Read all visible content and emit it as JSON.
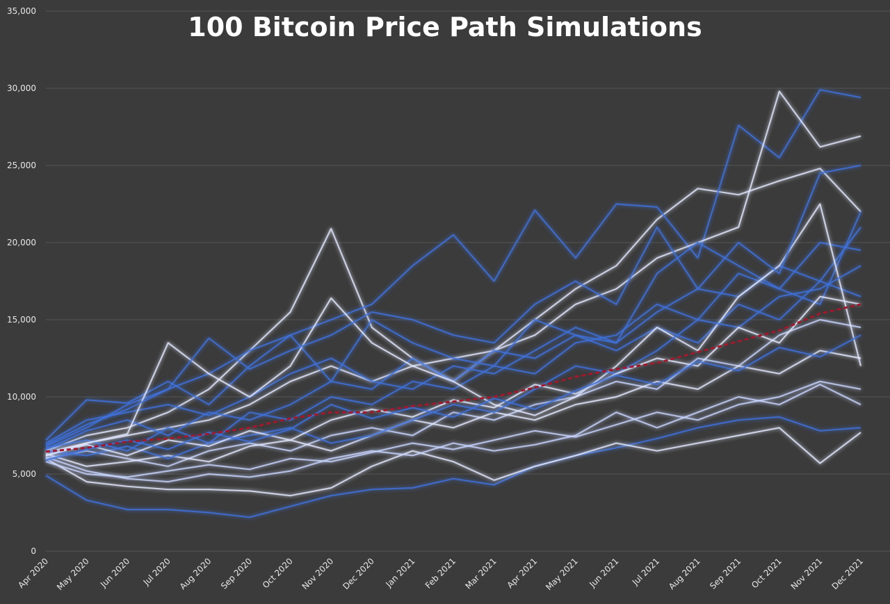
{
  "chart_data": {
    "type": "line",
    "title": "100 Bitcoin Price Path Simulations",
    "categories": [
      "Apr 2020",
      "May 2020",
      "Jun 2020",
      "Jul 2020",
      "Aug 2020",
      "Sep 2020",
      "Oct 2020",
      "Nov 2020",
      "Dec 2020",
      "Jan 2021",
      "Feb 2021",
      "Mar 2021",
      "Apr 2021",
      "May 2021",
      "Jun 2021",
      "Jul 2021",
      "Aug 2021",
      "Sep 2021",
      "Oct 2021",
      "Nov 2021",
      "Dec 2021"
    ],
    "ylim": [
      0,
      35000
    ],
    "yticks": [
      0,
      {
        "value": 5000,
        "label": "5,000"
      },
      {
        "value": 10000,
        "label": "10,000"
      },
      {
        "value": 15000,
        "label": "15,000"
      },
      {
        "value": 20000,
        "label": "20,000"
      },
      {
        "value": 25000,
        "label": "25,000"
      },
      {
        "value": 30000,
        "label": "30,000"
      },
      {
        "value": 35000,
        "label": "35,000"
      }
    ],
    "grid": true,
    "series": [
      {
        "color": "#e4e9ff",
        "values": [
          6500,
          7500,
          8000,
          9000,
          10500,
          13000,
          15500,
          20900,
          14500,
          12500,
          11000,
          13000,
          15000,
          17000,
          18500,
          21500,
          23500,
          23100,
          24000,
          24800,
          22000
        ]
      },
      {
        "color": "#3f72dc",
        "values": [
          6800,
          8000,
          9500,
          10500,
          11500,
          13000,
          14000,
          15000,
          16000,
          18500,
          20500,
          17500,
          22100,
          19000,
          22500,
          22300,
          19000,
          27600,
          25500,
          29900,
          29400
        ]
      },
      {
        "color": "#e4e9ff",
        "values": [
          6200,
          7000,
          7500,
          8000,
          8500,
          9500,
          11000,
          12000,
          11000,
          12000,
          12500,
          13000,
          14000,
          16000,
          17000,
          19000,
          20000,
          21000,
          29800,
          26200,
          26900
        ]
      },
      {
        "color": "#3f72dc",
        "values": [
          4900,
          3300,
          2700,
          2700,
          2500,
          2200,
          2900,
          3600,
          4000,
          4100,
          4700,
          4300,
          5500,
          6200,
          6700,
          7300,
          8000,
          8500,
          8700,
          7800,
          8000
        ]
      },
      {
        "color": "#e4e9ff",
        "values": [
          6000,
          4500,
          4200,
          4000,
          4000,
          3900,
          3600,
          4100,
          5500,
          6500,
          5800,
          4600,
          5500,
          6200,
          7000,
          6500,
          7000,
          7500,
          8000,
          5700,
          7700
        ]
      },
      {
        "color": "#3f72dc",
        "values": [
          6700,
          7200,
          6500,
          8000,
          7000,
          9000,
          8500,
          10000,
          9500,
          11000,
          10500,
          12000,
          11500,
          13500,
          14000,
          16000,
          15000,
          18000,
          17000,
          20000,
          19500
        ]
      },
      {
        "color": "#c9d5ff",
        "values": [
          6000,
          6500,
          6000,
          5500,
          6500,
          7000,
          6500,
          7500,
          8000,
          7500,
          9000,
          8500,
          9500,
          10000,
          11000,
          10500,
          12500,
          12000,
          14000,
          15000,
          14500
        ]
      },
      {
        "color": "#3f72dc",
        "values": [
          7000,
          8500,
          9000,
          9500,
          8800,
          10000,
          11500,
          12500,
          11000,
          10500,
          12000,
          11500,
          13000,
          14500,
          13500,
          15500,
          17000,
          16500,
          18500,
          17500,
          21000
        ]
      },
      {
        "color": "#e4e9ff",
        "values": [
          6300,
          5500,
          5800,
          6200,
          5800,
          6800,
          7200,
          6500,
          7500,
          8500,
          8000,
          9000,
          8500,
          9500,
          10000,
          11000,
          10500,
          12000,
          11500,
          13000,
          12500
        ]
      },
      {
        "color": "#3f72dc",
        "values": [
          6600,
          7800,
          8500,
          7500,
          9000,
          8500,
          9500,
          11000,
          10500,
          12500,
          11000,
          13000,
          12500,
          14000,
          13000,
          14500,
          13500,
          16000,
          15000,
          17500,
          16500
        ]
      },
      {
        "color": "#c9d5ff",
        "values": [
          5800,
          5000,
          4800,
          5200,
          5600,
          5300,
          6000,
          5800,
          6400,
          7000,
          6600,
          7200,
          7800,
          7400,
          8200,
          9000,
          8500,
          9500,
          10000,
          11000,
          10500
        ]
      },
      {
        "color": "#3f72dc",
        "values": [
          7200,
          9800,
          9600,
          11000,
          9500,
          12000,
          14000,
          11000,
          15000,
          13500,
          12500,
          12000,
          15000,
          14000,
          13500,
          18000,
          20000,
          18500,
          17000,
          16000,
          22000
        ]
      },
      {
        "color": "#e4e9ff",
        "values": [
          6400,
          7000,
          7600,
          13500,
          11500,
          10000,
          12000,
          16400,
          13500,
          12000,
          11000,
          9500,
          8800,
          10000,
          12000,
          14500,
          13000,
          16500,
          18500,
          22500,
          12000
        ]
      },
      {
        "color": "#3f72dc",
        "values": [
          6500,
          6200,
          6800,
          6000,
          7000,
          7500,
          8000,
          7000,
          7500,
          8500,
          9500,
          9000,
          10500,
          12000,
          11500,
          13000,
          15000,
          14500,
          16500,
          17000,
          18500
        ]
      },
      {
        "color": "#c9d5ff",
        "values": [
          6100,
          5200,
          4700,
          4500,
          5000,
          4800,
          5200,
          6000,
          6500,
          6200,
          7000,
          6500,
          6900,
          7500,
          9000,
          8000,
          9000,
          10000,
          9500,
          10800,
          9500
        ]
      },
      {
        "color": "#3f72dc",
        "values": [
          6900,
          8200,
          9200,
          10500,
          13800,
          11800,
          13000,
          14000,
          15500,
          15000,
          14000,
          13500,
          16000,
          17500,
          16000,
          21000,
          17000,
          20000,
          18000,
          24500,
          25000
        ]
      },
      {
        "color": "#e4e9ff",
        "values": [
          6200,
          6900,
          6200,
          7200,
          6800,
          7800,
          7200,
          8500,
          9200,
          8700,
          9800,
          9300,
          10800,
          10200,
          11500,
          12500,
          12000,
          14500,
          13500,
          16500,
          16000
        ]
      },
      {
        "color": "#3f72dc",
        "values": [
          5900,
          6600,
          7200,
          6600,
          7700,
          7100,
          7900,
          9500,
          8600,
          9300,
          8700,
          9900,
          9200,
          10400,
          11400,
          10800,
          12300,
          11700,
          13200,
          12600,
          14000
        ]
      },
      {
        "color": "#a3182c",
        "dashed": true,
        "values": [
          6450,
          6700,
          7100,
          7300,
          7600,
          8000,
          8600,
          9000,
          9000,
          9400,
          9700,
          10000,
          10600,
          11300,
          11800,
          12200,
          12900,
          13600,
          14300,
          15400,
          16000
        ]
      }
    ]
  }
}
